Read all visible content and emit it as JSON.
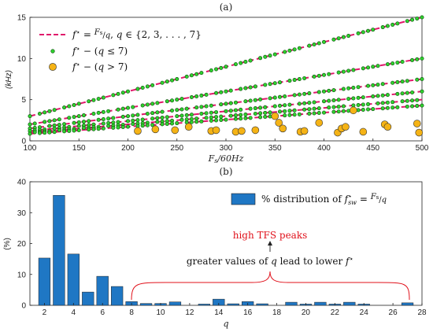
{
  "colors": {
    "dash": "#e0196b",
    "green": "#2fd12f",
    "orange": "#f5b315",
    "bar": "#1f77c4",
    "red": "#e0101a"
  },
  "chart_data": [
    {
      "type": "scatter",
      "title": "(a)",
      "xlabel": "F_s/60Hz",
      "ylabel": "(kHz)",
      "xlim": [
        100,
        500
      ],
      "ylim": [
        0,
        15
      ],
      "xticks": [
        "100",
        "150",
        "200",
        "250",
        "300",
        "350",
        "400",
        "450",
        "500"
      ],
      "yticks": [
        "0",
        "5",
        "10",
        "15"
      ],
      "grid": false,
      "legend_placement": "top-left",
      "legend": [
        {
          "label": "f* = Fs/q, q ∈ {2,3,...,7}",
          "marker": "dashed-line"
        },
        {
          "label": "f* − (q ≤ 7)",
          "marker": "small-green-dot"
        },
        {
          "label": "f* − (q > 7)",
          "marker": "orange-dot"
        }
      ],
      "series": [
        {
          "name": "f* = Fs/q, q ∈ {2,3,...,7}",
          "kind": "lines",
          "lines": [
            {
              "q": 2,
              "x": [
                100,
                500
              ],
              "y": [
                3.0,
                15.0
              ]
            },
            {
              "q": 3,
              "x": [
                100,
                500
              ],
              "y": [
                2.0,
                10.0
              ]
            },
            {
              "q": 4,
              "x": [
                100,
                500
              ],
              "y": [
                1.5,
                7.5
              ]
            },
            {
              "q": 5,
              "x": [
                100,
                500
              ],
              "y": [
                1.2,
                6.0
              ]
            },
            {
              "q": 6,
              "x": [
                100,
                500
              ],
              "y": [
                1.0,
                5.0
              ]
            },
            {
              "q": 7,
              "x": [
                100,
                500
              ],
              "y": [
                0.857,
                4.29
              ]
            }
          ]
        },
        {
          "name": "f* − (q ≤ 7)",
          "kind": "points",
          "x_step": 5
        },
        {
          "name": "f* − (q > 7)",
          "kind": "points",
          "points": [
            [
              210,
              1.2
            ],
            [
              228,
              1.4
            ],
            [
              248,
              1.3
            ],
            [
              262,
              1.7
            ],
            [
              285,
              1.2
            ],
            [
              290,
              1.3
            ],
            [
              310,
              1.1
            ],
            [
              316,
              1.2
            ],
            [
              330,
              1.3
            ],
            [
              350,
              3.0
            ],
            [
              354,
              2.2
            ],
            [
              358,
              1.5
            ],
            [
              376,
              1.1
            ],
            [
              380,
              1.2
            ],
            [
              395,
              2.2
            ],
            [
              414,
              1.0
            ],
            [
              418,
              1.5
            ],
            [
              422,
              1.7
            ],
            [
              430,
              3.7
            ],
            [
              440,
              1.1
            ],
            [
              462,
              2.0
            ],
            [
              465,
              1.7
            ],
            [
              495,
              2.1
            ],
            [
              497,
              1.0
            ]
          ]
        }
      ]
    },
    {
      "type": "bar",
      "title": "(b)",
      "xlabel": "q",
      "ylabel": "(%)",
      "xlim": [
        1,
        28
      ],
      "ylim": [
        0,
        40
      ],
      "xticks": [
        "2",
        "4",
        "6",
        "8",
        "10",
        "12",
        "14",
        "16",
        "18",
        "20",
        "22",
        "24",
        "26",
        "28"
      ],
      "yticks": [
        "0",
        "10",
        "20",
        "30",
        "40"
      ],
      "legend": [
        {
          "label": "% distribution of f*sw = Fs/q",
          "marker": "bar"
        }
      ],
      "categories": [
        2,
        3,
        4,
        5,
        6,
        7,
        8,
        9,
        10,
        11,
        13,
        14,
        15,
        16,
        17,
        19,
        20,
        21,
        22,
        23,
        24,
        27
      ],
      "values": [
        15.3,
        35.6,
        16.6,
        4.3,
        9.4,
        6.1,
        1.2,
        0.6,
        0.6,
        1.1,
        0.4,
        2.0,
        0.5,
        1.2,
        0.5,
        1.0,
        0.4,
        1.0,
        0.4,
        1.0,
        0.4,
        0.8
      ],
      "annotations": {
        "top": "high TFS peaks",
        "bottom": "greater values of q lead to lower f*"
      }
    }
  ]
}
